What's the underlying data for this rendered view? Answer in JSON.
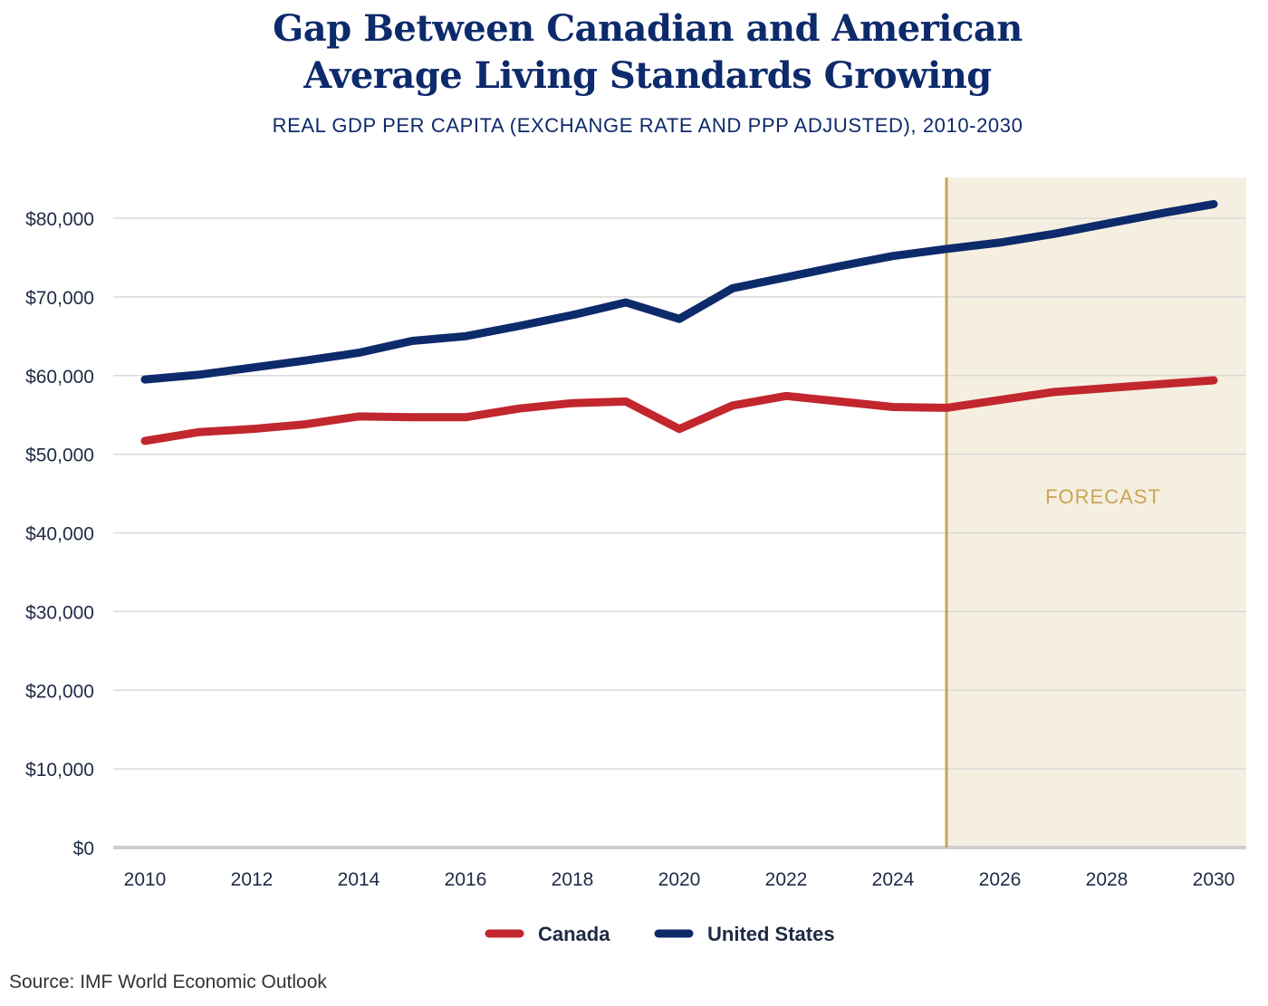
{
  "chart_data": {
    "type": "line",
    "title_lines": [
      "Gap Between Canadian and American",
      "Average Living Standards Growing"
    ],
    "subtitle": "REAL GDP PER CAPITA (EXCHANGE RATE AND PPP ADJUSTED), 2010-2030",
    "x": [
      2010,
      2011,
      2012,
      2013,
      2014,
      2015,
      2016,
      2017,
      2018,
      2019,
      2020,
      2021,
      2022,
      2023,
      2024,
      2025,
      2026,
      2027,
      2028,
      2029,
      2030
    ],
    "x_ticks": [
      "2010",
      "2012",
      "2014",
      "2016",
      "2018",
      "2020",
      "2022",
      "2024",
      "2026",
      "2028",
      "2030"
    ],
    "y_ticks": [
      "$0",
      "$10,000",
      "$20,000",
      "$30,000",
      "$40,000",
      "$50,000",
      "$60,000",
      "$70,000",
      "$80,000"
    ],
    "ylim": [
      0,
      85000
    ],
    "xlim": [
      2009.9,
      2030.5
    ],
    "grid": true,
    "series": [
      {
        "name": "Canada",
        "color": "#c1272d",
        "values": [
          51700,
          52800,
          53200,
          53800,
          54800,
          54700,
          54700,
          55800,
          56500,
          56700,
          53200,
          56200,
          57400,
          56700,
          56000,
          55900,
          56900,
          57900,
          58400,
          58900,
          59400
        ]
      },
      {
        "name": "United States",
        "color": "#0d2a6b",
        "values": [
          59500,
          60100,
          61000,
          61900,
          62900,
          64400,
          65000,
          66300,
          67700,
          69300,
          67200,
          71100,
          72500,
          73900,
          75200,
          76100,
          76900,
          78000,
          79300,
          80600,
          81800
        ]
      }
    ],
    "forecast": {
      "start": 2025,
      "label": "FORECAST",
      "line_color": "#c9a555",
      "fill_color": "#f5efe1",
      "label_color": "#c9a555"
    },
    "legend_placement": "bottom-center"
  },
  "source": "Source: IMF World Economic Outlook"
}
